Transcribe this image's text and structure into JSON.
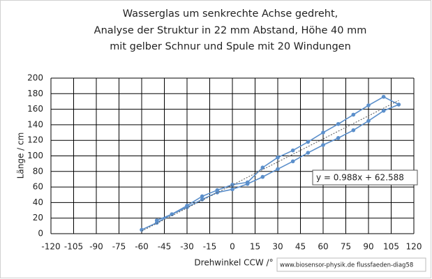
{
  "chart_data": {
    "type": "line",
    "title": [
      "Wasserglas um senkrechte Achse gedreht,",
      "Analyse der Struktur in 22  mm Abstand, Höhe 40 mm",
      "mit gelber Schnur und Spule mit 20 Windungen"
    ],
    "x_label": "Drehwinkel CCW /°",
    "y_label": "Länge / cm",
    "series": [
      {
        "color": "#5b8fcb",
        "x": [
          -60,
          -50,
          -40,
          -30,
          -20,
          -10,
          0,
          10,
          20,
          30,
          40,
          50,
          60,
          70,
          80,
          90,
          100,
          110,
          100,
          90,
          80,
          70,
          60,
          50,
          40,
          30,
          20,
          10,
          0,
          -10,
          -20,
          -30,
          -40,
          -50
        ],
        "values": [
          5,
          14,
          25,
          34,
          44,
          53,
          57,
          64,
          73,
          83,
          93,
          104,
          114,
          123,
          133,
          145,
          158,
          166,
          176,
          165,
          153,
          141,
          130,
          118,
          107,
          98,
          85,
          66,
          63,
          56,
          48,
          36,
          25,
          17
        ]
      }
    ],
    "trendline": {
      "slope": 0.988,
      "intercept": 62.588,
      "label": "y = 0.988x + 62.588"
    },
    "xlim": [
      -120,
      120
    ],
    "xticks": [
      -120,
      -105,
      -90,
      -75,
      -60,
      -45,
      -30,
      -15,
      0,
      15,
      30,
      45,
      60,
      75,
      90,
      105,
      120
    ],
    "ylim": [
      0,
      200
    ],
    "yticks": [
      0,
      20,
      40,
      60,
      80,
      100,
      120,
      140,
      160,
      180,
      200
    ],
    "grid": true,
    "watermark": "www.biosensor-physik.de  flussfaeden-diag58"
  }
}
